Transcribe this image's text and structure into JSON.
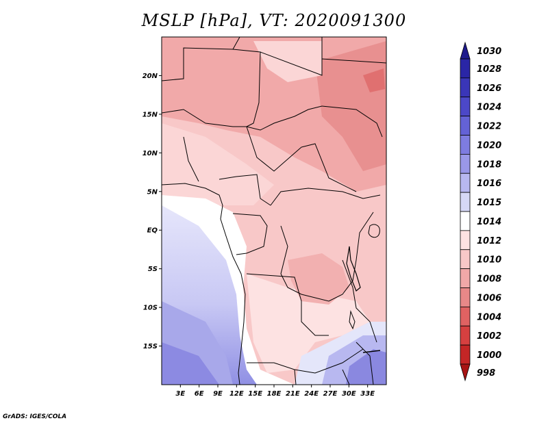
{
  "title": "MSLP [hPa], VT: 2020091300",
  "credit": "GrADS: IGES/COLA",
  "map": {
    "lon_range": [
      0,
      36
    ],
    "lat_range": [
      -20,
      25
    ],
    "lat_ticks": [
      {
        "value": 20,
        "label": "20N"
      },
      {
        "value": 15,
        "label": "15N"
      },
      {
        "value": 10,
        "label": "10N"
      },
      {
        "value": 5,
        "label": "5N"
      },
      {
        "value": 0,
        "label": "EQ"
      },
      {
        "value": -5,
        "label": "5S"
      },
      {
        "value": -10,
        "label": "10S"
      },
      {
        "value": -15,
        "label": "15S"
      }
    ],
    "lon_ticks": [
      {
        "value": 3,
        "label": "3E"
      },
      {
        "value": 6,
        "label": "6E"
      },
      {
        "value": 9,
        "label": "9E"
      },
      {
        "value": 12,
        "label": "12E"
      },
      {
        "value": 15,
        "label": "15E"
      },
      {
        "value": 18,
        "label": "18E"
      },
      {
        "value": 21,
        "label": "21E"
      },
      {
        "value": 24,
        "label": "24E"
      },
      {
        "value": 27,
        "label": "27E"
      },
      {
        "value": 30,
        "label": "30E"
      },
      {
        "value": 33,
        "label": "33E"
      }
    ]
  },
  "colorbar": {
    "levels": [
      {
        "label": "1030",
        "color": "#1e1a8c"
      },
      {
        "label": "1028",
        "color": "#2a26a6"
      },
      {
        "label": "1026",
        "color": "#3a36b8"
      },
      {
        "label": "1024",
        "color": "#4c48c8"
      },
      {
        "label": "1022",
        "color": "#6462d6"
      },
      {
        "label": "1020",
        "color": "#7e7ce0"
      },
      {
        "label": "1018",
        "color": "#9a98e8"
      },
      {
        "label": "1016",
        "color": "#b8b8f0"
      },
      {
        "label": "1015",
        "color": "#d6d8f6"
      },
      {
        "label": "1014",
        "color": "#ffffff"
      },
      {
        "label": "1012",
        "color": "#fde2e2"
      },
      {
        "label": "1010",
        "color": "#f8c8c8"
      },
      {
        "label": "1008",
        "color": "#f0a8a8"
      },
      {
        "label": "1006",
        "color": "#e88888"
      },
      {
        "label": "1004",
        "color": "#e06262"
      },
      {
        "label": "1002",
        "color": "#d64040"
      },
      {
        "label": "1000",
        "color": "#c42626"
      },
      {
        "label": "998",
        "color": "#a81414"
      }
    ]
  }
}
